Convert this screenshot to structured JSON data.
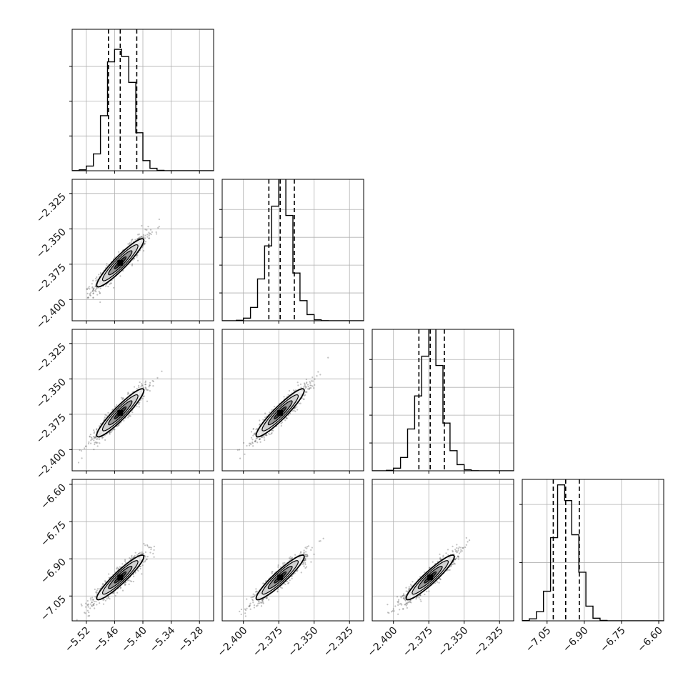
{
  "chart_data": {
    "type": "corner",
    "title": "",
    "n_params": 4,
    "grid": true,
    "params": [
      {
        "range": [
          -5.55,
          -5.25
        ],
        "ticks": [
          -5.52,
          -5.46,
          -5.4,
          -5.34,
          -5.28
        ],
        "tick_labels": [
          "−5.52",
          "−5.46",
          "−5.40",
          "−5.34",
          "−5.28"
        ],
        "quantiles": [
          -5.473,
          -5.448,
          -5.413
        ],
        "median": -5.448,
        "sigma": 0.025,
        "hist_peak": 3.9
      },
      {
        "range": [
          -2.415,
          -2.315
        ],
        "ticks": [
          -2.4,
          -2.375,
          -2.35,
          -2.325
        ],
        "tick_labels": [
          "−2.400",
          "−2.375",
          "−2.350",
          "−2.325"
        ],
        "quantiles": [
          -2.382,
          -2.374,
          -2.364
        ],
        "median": -2.374,
        "sigma": 0.0085,
        "hist_peak": 4.6
      },
      {
        "range": [
          -2.415,
          -2.315
        ],
        "ticks": [
          -2.4,
          -2.375,
          -2.35,
          -2.325
        ],
        "tick_labels": [
          "−2.400",
          "−2.375",
          "−2.350",
          "−2.325"
        ],
        "quantiles": [
          -2.382,
          -2.374,
          -2.364
        ],
        "median": -2.374,
        "sigma": 0.0085,
        "hist_peak": 4.6
      },
      {
        "range": [
          -7.15,
          -6.58
        ],
        "ticks": [
          -7.05,
          -6.9,
          -6.75,
          -6.6
        ],
        "tick_labels": [
          "−7.05",
          "−6.90",
          "−6.75",
          "−6.60"
        ],
        "quantiles": [
          -7.025,
          -6.975,
          -6.92
        ],
        "median": -6.975,
        "sigma": 0.045,
        "hist_peak": 2.2
      }
    ],
    "correlation": 0.93,
    "contour_levels_sigma": [
      0.5,
      1.0,
      1.5,
      2.0
    ],
    "colors": {
      "line": "#000000",
      "points": "#4d4d4d",
      "grid": "#b0b0b0",
      "fill_levels": [
        "#f0f0f0",
        "#cfcfcf",
        "#8f8f8f",
        "#3a3a3a"
      ]
    }
  }
}
